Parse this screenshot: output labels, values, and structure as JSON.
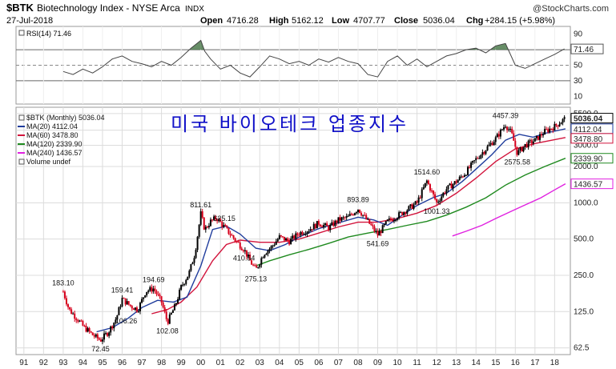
{
  "header": {
    "symbol": "$BTK",
    "name": "Biotechnology Index - NYSE Arca",
    "exchange": "INDX",
    "date": "27-Jul-2018",
    "open_label": "Open",
    "open": "4716.28",
    "high_label": "High",
    "high": "5162.12",
    "low_label": "Low",
    "low": "4707.77",
    "close_label": "Close",
    "close": "5036.04",
    "chg_label": "Chg",
    "chg": "+284.15 (+5.98%)",
    "source": "@StockCharts.com"
  },
  "overlay_title": "미국 바이오테크 업종지수",
  "colors": {
    "price": "#000000",
    "down": "#d6001c",
    "ma20": "#1f3c9c",
    "ma60": "#d2143c",
    "ma120": "#1f8a1f",
    "ma240": "#e020e0",
    "title": "#1010c8",
    "rsi_fill": "#4c7a4c",
    "grid": "#dcdcdc"
  },
  "chart_data": [
    {
      "type": "line",
      "panel": "rsi",
      "legend": "RSI(14) 71.46",
      "ylim": [
        0,
        100
      ],
      "y_ticks": [
        10,
        30,
        50,
        70,
        90
      ],
      "ref_lines": [
        30,
        50,
        70
      ],
      "last_value_label": "71.46",
      "x": [
        1993.0,
        1993.5,
        1994.0,
        1994.5,
        1995.0,
        1995.5,
        1996.0,
        1996.5,
        1997.0,
        1997.5,
        1998.0,
        1998.5,
        1999.0,
        1999.5,
        2000.0,
        2000.2,
        2000.5,
        2001.0,
        2001.5,
        2002.0,
        2002.5,
        2003.0,
        2003.5,
        2004.0,
        2004.5,
        2005.0,
        2005.5,
        2006.0,
        2006.5,
        2007.0,
        2007.5,
        2008.0,
        2008.5,
        2009.0,
        2009.5,
        2010.0,
        2010.5,
        2011.0,
        2011.5,
        2012.0,
        2012.5,
        2013.0,
        2013.5,
        2014.0,
        2014.5,
        2015.0,
        2015.5,
        2016.0,
        2016.5,
        2017.0,
        2017.5,
        2018.0,
        2018.5
      ],
      "values": [
        42,
        38,
        45,
        40,
        48,
        58,
        62,
        55,
        52,
        48,
        55,
        50,
        60,
        72,
        82,
        68,
        58,
        45,
        50,
        40,
        35,
        48,
        62,
        58,
        52,
        55,
        50,
        58,
        54,
        60,
        55,
        52,
        38,
        35,
        55,
        62,
        50,
        58,
        48,
        55,
        62,
        65,
        70,
        72,
        66,
        75,
        78,
        50,
        46,
        52,
        58,
        64,
        71
      ]
    },
    {
      "type": "candlestick",
      "panel": "price",
      "scale": "log",
      "legend": [
        "$BTK (Monthly) 5036.04",
        "MA(20) 4112.04",
        "MA(60) 3478.80",
        "MA(120) 2339.90",
        "MA(240) 1436.57",
        "Volume undef"
      ],
      "y_ticks": [
        62.5,
        125.0,
        250.0,
        500.0,
        1000.0,
        2000.0,
        3000.0,
        4000.0,
        5500.0
      ],
      "x_tick_labels": [
        "91",
        "92",
        "93",
        "94",
        "95",
        "96",
        "97",
        "98",
        "99",
        "00",
        "01",
        "02",
        "03",
        "04",
        "05",
        "06",
        "07",
        "08",
        "09",
        "10",
        "11",
        "12",
        "13",
        "14",
        "15",
        "16",
        "17",
        "18"
      ],
      "x_tick_years": [
        1991,
        1992,
        1993,
        1994,
        1995,
        1996,
        1997,
        1998,
        1999,
        2000,
        2001,
        2002,
        2003,
        2004,
        2005,
        2006,
        2007,
        2008,
        2009,
        2010,
        2011,
        2012,
        2013,
        2014,
        2015,
        2016,
        2017,
        2018
      ],
      "xlim": [
        1990.6,
        2018.8
      ],
      "ylim": [
        55,
        6200
      ],
      "price": {
        "x": [
          1993.0,
          1993.3,
          1993.7,
          1994.0,
          1994.5,
          1994.9,
          1995.3,
          1995.7,
          1996.0,
          1996.4,
          1996.8,
          1997.2,
          1997.6,
          1998.0,
          1998.3,
          1998.7,
          1999.0,
          1999.4,
          1999.7,
          2000.0,
          2000.2,
          2000.5,
          2000.8,
          2001.2,
          2001.5,
          2001.8,
          2002.2,
          2002.5,
          2002.8,
          2003.2,
          2003.6,
          2004.0,
          2004.5,
          2005.0,
          2005.5,
          2006.0,
          2006.5,
          2007.0,
          2007.5,
          2008.0,
          2008.5,
          2009.0,
          2009.5,
          2010.0,
          2010.5,
          2011.0,
          2011.5,
          2012.0,
          2012.5,
          2013.0,
          2013.5,
          2014.0,
          2014.5,
          2015.0,
          2015.5,
          2015.8,
          2016.1,
          2016.5,
          2017.0,
          2017.5,
          2018.0,
          2018.55
        ],
        "values": [
          183.1,
          130,
          110,
          95,
          80,
          72.45,
          85,
          110,
          159.41,
          140,
          130,
          185,
          194.69,
          150,
          102.08,
          140,
          200,
          260,
          380,
          811.61,
          600,
          700,
          750,
          625.15,
          550,
          480,
          410.54,
          330,
          275.13,
          380,
          430,
          520,
          480,
          560,
          600,
          680,
          620,
          720,
          760,
          893.89,
          700,
          541.69,
          700,
          780,
          880,
          1000,
          1514.6,
          1001.33,
          1300,
          1500,
          1800,
          2300,
          2800,
          3400,
          4457.39,
          3800,
          2575.58,
          3000,
          3300,
          3900,
          4300,
          5036.04
        ]
      },
      "ma20": {
        "x": [
          1994.7,
          1995.5,
          1996.3,
          1997.0,
          1997.8,
          1998.6,
          1999.3,
          2000.0,
          2000.6,
          2001.3,
          2002.0,
          2002.8,
          2003.5,
          2004.3,
          2005.0,
          2006.0,
          2007.0,
          2008.0,
          2008.8,
          2009.5,
          2010.3,
          2011.0,
          2011.8,
          2012.5,
          2013.3,
          2014.0,
          2014.8,
          2015.5,
          2016.2,
          2016.9,
          2017.6,
          2018.55
        ],
        "values": [
          85,
          92,
          110,
          135,
          155,
          150,
          165,
          300,
          600,
          640,
          550,
          420,
          400,
          450,
          520,
          610,
          680,
          760,
          720,
          650,
          800,
          950,
          1100,
          1200,
          1500,
          1900,
          2500,
          3300,
          3700,
          3500,
          3800,
          4112.04
        ]
      },
      "ma60": {
        "x": [
          1997.5,
          1998.3,
          1999.0,
          1999.8,
          2000.6,
          2001.3,
          2002.0,
          2003.0,
          2004.0,
          2005.0,
          2006.0,
          2007.0,
          2008.0,
          2009.0,
          2010.0,
          2011.0,
          2012.0,
          2013.0,
          2014.0,
          2015.0,
          2016.0,
          2017.0,
          2018.55
        ],
        "values": [
          120,
          130,
          150,
          200,
          330,
          450,
          490,
          470,
          470,
          500,
          560,
          630,
          690,
          690,
          740,
          820,
          950,
          1200,
          1600,
          2200,
          2800,
          3100,
          3478.8
        ]
      },
      "ma120": {
        "x": [
          2002.8,
          2003.5,
          2004.5,
          2005.5,
          2006.5,
          2007.5,
          2008.5,
          2009.5,
          2010.5,
          2011.5,
          2012.5,
          2013.5,
          2014.5,
          2015.5,
          2016.5,
          2017.5,
          2018.55
        ],
        "values": [
          300,
          330,
          370,
          410,
          460,
          520,
          560,
          600,
          650,
          700,
          790,
          920,
          1100,
          1400,
          1700,
          2000,
          2339.9
        ]
      },
      "ma240": {
        "x": [
          2012.8,
          2013.5,
          2014.3,
          2015.0,
          2015.8,
          2016.5,
          2017.3,
          2018.0,
          2018.55
        ],
        "values": [
          530,
          580,
          650,
          740,
          850,
          960,
          1100,
          1280,
          1436.57
        ]
      },
      "annotations": [
        {
          "x": 1993.0,
          "y": 183.1,
          "text": "183.10",
          "pos": "above"
        },
        {
          "x": 1994.9,
          "y": 72.45,
          "text": "72.45",
          "pos": "below"
        },
        {
          "x": 1995.4,
          "y": 106.26,
          "text": "106.26",
          "pos": "right"
        },
        {
          "x": 1996.0,
          "y": 159.41,
          "text": "159.41",
          "pos": "above"
        },
        {
          "x": 1997.6,
          "y": 194.69,
          "text": "194.69",
          "pos": "above"
        },
        {
          "x": 1998.3,
          "y": 102.08,
          "text": "102.08",
          "pos": "below"
        },
        {
          "x": 2000.0,
          "y": 811.61,
          "text": "811.61",
          "pos": "above"
        },
        {
          "x": 2001.2,
          "y": 625.15,
          "text": "625.15",
          "pos": "above"
        },
        {
          "x": 2002.2,
          "y": 410.54,
          "text": "410.54",
          "pos": "below"
        },
        {
          "x": 2002.8,
          "y": 275.13,
          "text": "275.13",
          "pos": "below"
        },
        {
          "x": 2008.0,
          "y": 893.89,
          "text": "893.89",
          "pos": "above"
        },
        {
          "x": 2009.0,
          "y": 541.69,
          "text": "541.69",
          "pos": "below"
        },
        {
          "x": 2011.5,
          "y": 1514.6,
          "text": "1514.60",
          "pos": "above"
        },
        {
          "x": 2012.0,
          "y": 1001.33,
          "text": "1001.33",
          "pos": "below"
        },
        {
          "x": 2015.5,
          "y": 4457.39,
          "text": "4457.39",
          "pos": "above"
        },
        {
          "x": 2016.1,
          "y": 2575.58,
          "text": "2575.58",
          "pos": "below"
        }
      ],
      "right_labels": [
        {
          "y": 5036.04,
          "text": "5036.04",
          "style": "bold"
        },
        {
          "y": 4112.04,
          "text": "4112.04",
          "style": "ma20"
        },
        {
          "y": 3478.8,
          "text": "3478.80",
          "style": "ma60"
        },
        {
          "y": 2339.9,
          "text": "2339.90",
          "style": "ma120"
        },
        {
          "y": 1436.57,
          "text": "1436.57",
          "style": "ma240"
        }
      ]
    }
  ]
}
